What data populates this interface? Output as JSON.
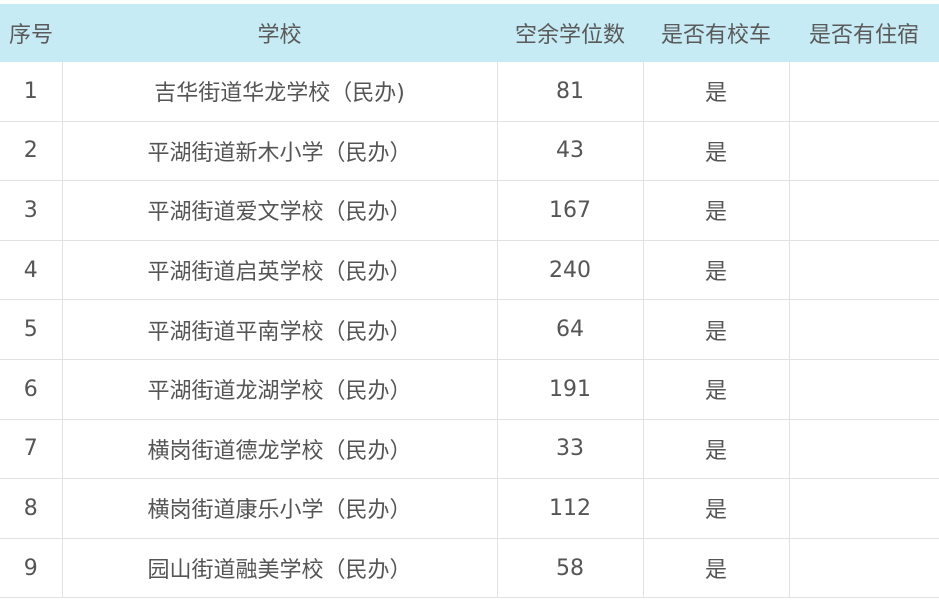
{
  "headers": [
    "序号",
    "学校",
    "空余学位数",
    "是否有校车",
    "是否有住宿"
  ],
  "rows": [
    {
      "no": "1",
      "school": "吉华街道华龙学校（民办)",
      "vacancies": "81",
      "bus": "是",
      "boarding": ""
    },
    {
      "no": "2",
      "school": "平湖街道新木小学（民办）",
      "vacancies": "43",
      "bus": "是",
      "boarding": ""
    },
    {
      "no": "3",
      "school": "平湖街道爱文学校（民办）",
      "vacancies": "167",
      "bus": "是",
      "boarding": ""
    },
    {
      "no": "4",
      "school": "平湖街道启英学校（民办）",
      "vacancies": "240",
      "bus": "是",
      "boarding": ""
    },
    {
      "no": "5",
      "school": "平湖街道平南学校（民办）",
      "vacancies": "64",
      "bus": "是",
      "boarding": ""
    },
    {
      "no": "6",
      "school": "平湖街道龙湖学校（民办）",
      "vacancies": "191",
      "bus": "是",
      "boarding": ""
    },
    {
      "no": "7",
      "school": "横岗街道德龙学校（民办）",
      "vacancies": "33",
      "bus": "是",
      "boarding": ""
    },
    {
      "no": "8",
      "school": "横岗街道康乐小学（民办）",
      "vacancies": "112",
      "bus": "是",
      "boarding": ""
    },
    {
      "no": "9",
      "school": "园山街道融美学校（民办）",
      "vacancies": "58",
      "bus": "是",
      "boarding": ""
    }
  ]
}
